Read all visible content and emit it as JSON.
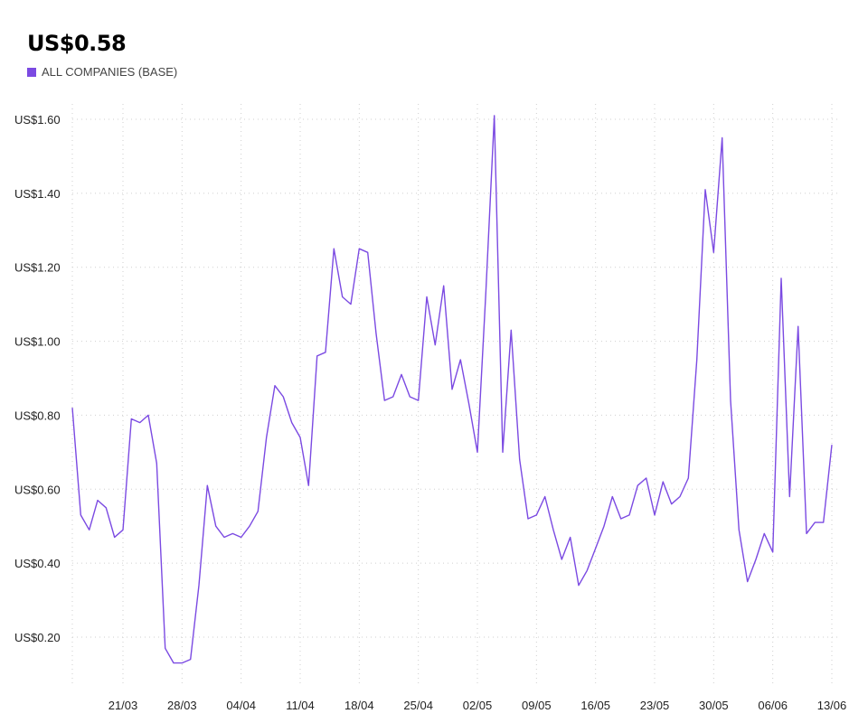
{
  "header": {
    "value": "US$0.58",
    "legend_label": "ALL COMPANIES (BASE)"
  },
  "colors": {
    "series": "#7b4ae2",
    "grid": "#cfcfcf"
  },
  "chart_data": {
    "type": "line",
    "title": "",
    "xlabel": "",
    "ylabel": "",
    "ylim": [
      0.1,
      1.65
    ],
    "grid": true,
    "legend_placement": "top-left",
    "y_ticks": [
      {
        "value": 0.2,
        "label": "US$0.20"
      },
      {
        "value": 0.4,
        "label": "US$0.40"
      },
      {
        "value": 0.6,
        "label": "US$0.60"
      },
      {
        "value": 0.8,
        "label": "US$0.80"
      },
      {
        "value": 1.0,
        "label": "US$1.00"
      },
      {
        "value": 1.2,
        "label": "US$1.20"
      },
      {
        "value": 1.4,
        "label": "US$1.40"
      },
      {
        "value": 1.6,
        "label": "US$1.60"
      }
    ],
    "x_ticks": [
      "21/03",
      "28/03",
      "04/04",
      "11/04",
      "18/04",
      "25/04",
      "02/05",
      "09/05",
      "16/05",
      "23/05",
      "30/05",
      "06/06",
      "13/06"
    ],
    "x_tick_days": [
      6,
      13,
      20,
      27,
      34,
      41,
      48,
      55,
      62,
      69,
      76,
      83,
      90
    ],
    "series": [
      {
        "name": "ALL COMPANIES (BASE)",
        "points": [
          [
            0,
            0.82
          ],
          [
            1,
            0.53
          ],
          [
            2,
            0.49
          ],
          [
            3,
            0.57
          ],
          [
            4,
            0.55
          ],
          [
            5,
            0.47
          ],
          [
            6,
            0.49
          ],
          [
            7,
            0.79
          ],
          [
            8,
            0.78
          ],
          [
            9,
            0.8
          ],
          [
            10,
            0.67
          ],
          [
            11,
            0.17
          ],
          [
            12,
            0.13
          ],
          [
            13,
            0.13
          ],
          [
            14,
            0.14
          ],
          [
            15,
            0.34
          ],
          [
            16,
            0.61
          ],
          [
            17,
            0.5
          ],
          [
            18,
            0.47
          ],
          [
            19,
            0.48
          ],
          [
            20,
            0.47
          ],
          [
            21,
            0.5
          ],
          [
            22,
            0.54
          ],
          [
            23,
            0.74
          ],
          [
            24,
            0.88
          ],
          [
            25,
            0.85
          ],
          [
            26,
            0.78
          ],
          [
            27,
            0.74
          ],
          [
            28,
            0.61
          ],
          [
            29,
            0.96
          ],
          [
            30,
            0.97
          ],
          [
            31,
            1.25
          ],
          [
            32,
            1.12
          ],
          [
            33,
            1.1
          ],
          [
            34,
            1.25
          ],
          [
            35,
            1.24
          ],
          [
            36,
            1.02
          ],
          [
            37,
            0.84
          ],
          [
            38,
            0.85
          ],
          [
            39,
            0.91
          ],
          [
            40,
            0.85
          ],
          [
            41,
            0.84
          ],
          [
            42,
            1.12
          ],
          [
            43,
            0.99
          ],
          [
            44,
            1.15
          ],
          [
            45,
            0.87
          ],
          [
            46,
            0.95
          ],
          [
            47,
            0.83
          ],
          [
            48,
            0.7
          ],
          [
            49,
            1.13
          ],
          [
            50,
            1.61
          ],
          [
            51,
            0.7
          ],
          [
            52,
            1.03
          ],
          [
            53,
            0.68
          ],
          [
            54,
            0.52
          ],
          [
            55,
            0.53
          ],
          [
            56,
            0.58
          ],
          [
            57,
            0.49
          ],
          [
            58,
            0.41
          ],
          [
            59,
            0.47
          ],
          [
            60,
            0.34
          ],
          [
            61,
            0.38
          ],
          [
            62,
            0.44
          ],
          [
            63,
            0.5
          ],
          [
            64,
            0.58
          ],
          [
            65,
            0.52
          ],
          [
            66,
            0.53
          ],
          [
            67,
            0.61
          ],
          [
            68,
            0.63
          ],
          [
            69,
            0.53
          ],
          [
            70,
            0.62
          ],
          [
            71,
            0.56
          ],
          [
            72,
            0.58
          ],
          [
            73,
            0.63
          ],
          [
            74,
            0.95
          ],
          [
            75,
            1.41
          ],
          [
            76,
            1.24
          ],
          [
            77,
            1.55
          ],
          [
            78,
            0.84
          ],
          [
            79,
            0.49
          ],
          [
            80,
            0.35
          ],
          [
            81,
            0.41
          ],
          [
            82,
            0.48
          ],
          [
            83,
            0.43
          ],
          [
            84,
            1.17
          ],
          [
            85,
            0.58
          ],
          [
            86,
            1.04
          ],
          [
            87,
            0.48
          ],
          [
            88,
            0.51
          ],
          [
            89,
            0.51
          ],
          [
            90,
            0.72
          ]
        ]
      }
    ]
  }
}
